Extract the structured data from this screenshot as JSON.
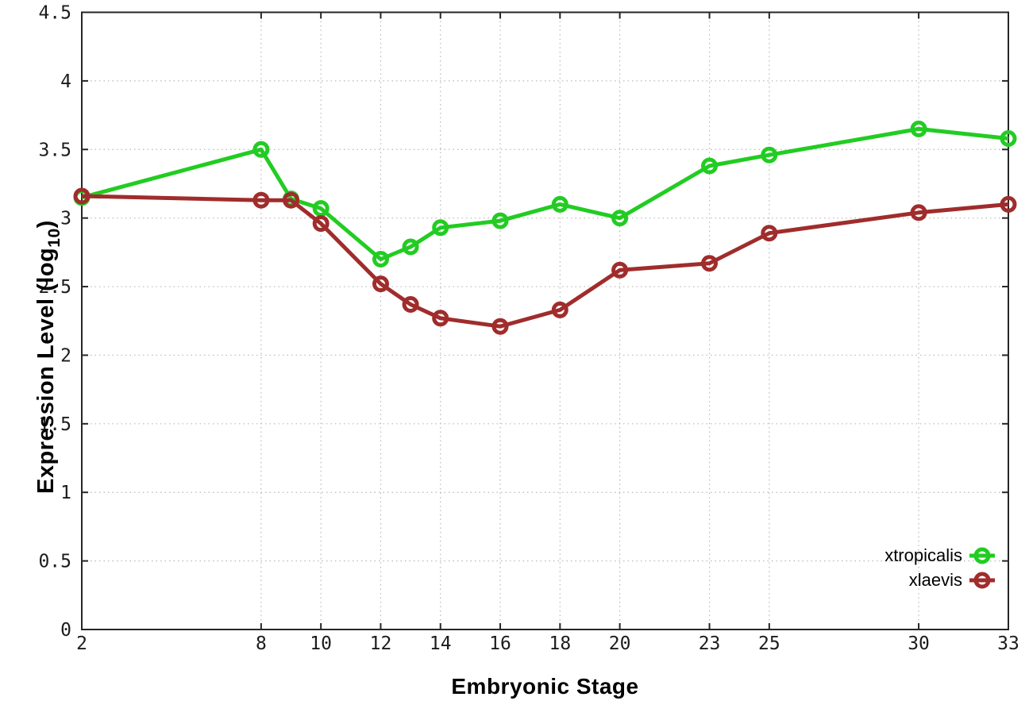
{
  "axes": {
    "xlabel": "Embryonic Stage",
    "ylabel_main": "Expression Level (log",
    "ylabel_sub": "10",
    "ylabel_suffix": ")"
  },
  "chart_data": {
    "type": "line",
    "title": "",
    "xlabel": "Embryonic Stage",
    "ylabel": "Expression Level (log10)",
    "x": [
      2,
      8,
      9,
      10,
      12,
      13,
      14,
      16,
      18,
      20,
      23,
      25,
      30,
      33
    ],
    "series": [
      {
        "name": "xtropicalis",
        "color": "#22cc22",
        "values": [
          3.15,
          3.5,
          3.14,
          3.07,
          2.7,
          2.79,
          2.93,
          2.98,
          3.1,
          3.0,
          3.38,
          3.46,
          3.65,
          3.58
        ]
      },
      {
        "name": "xlaevis",
        "color": "#a02c2c",
        "values": [
          3.16,
          3.13,
          3.13,
          2.96,
          2.52,
          2.37,
          2.27,
          2.21,
          2.33,
          2.62,
          2.67,
          2.89,
          3.04,
          3.1
        ]
      }
    ],
    "xticks": [
      2,
      8,
      10,
      12,
      14,
      16,
      18,
      20,
      23,
      25,
      30,
      33
    ],
    "yticks": [
      0,
      0.5,
      1,
      1.5,
      2,
      2.5,
      3,
      3.5,
      4,
      4.5
    ],
    "xlim": [
      2,
      33
    ],
    "ylim": [
      0,
      4.5
    ],
    "grid": true,
    "marker": "open-circle",
    "legend_position": "bottom-right-inside"
  }
}
